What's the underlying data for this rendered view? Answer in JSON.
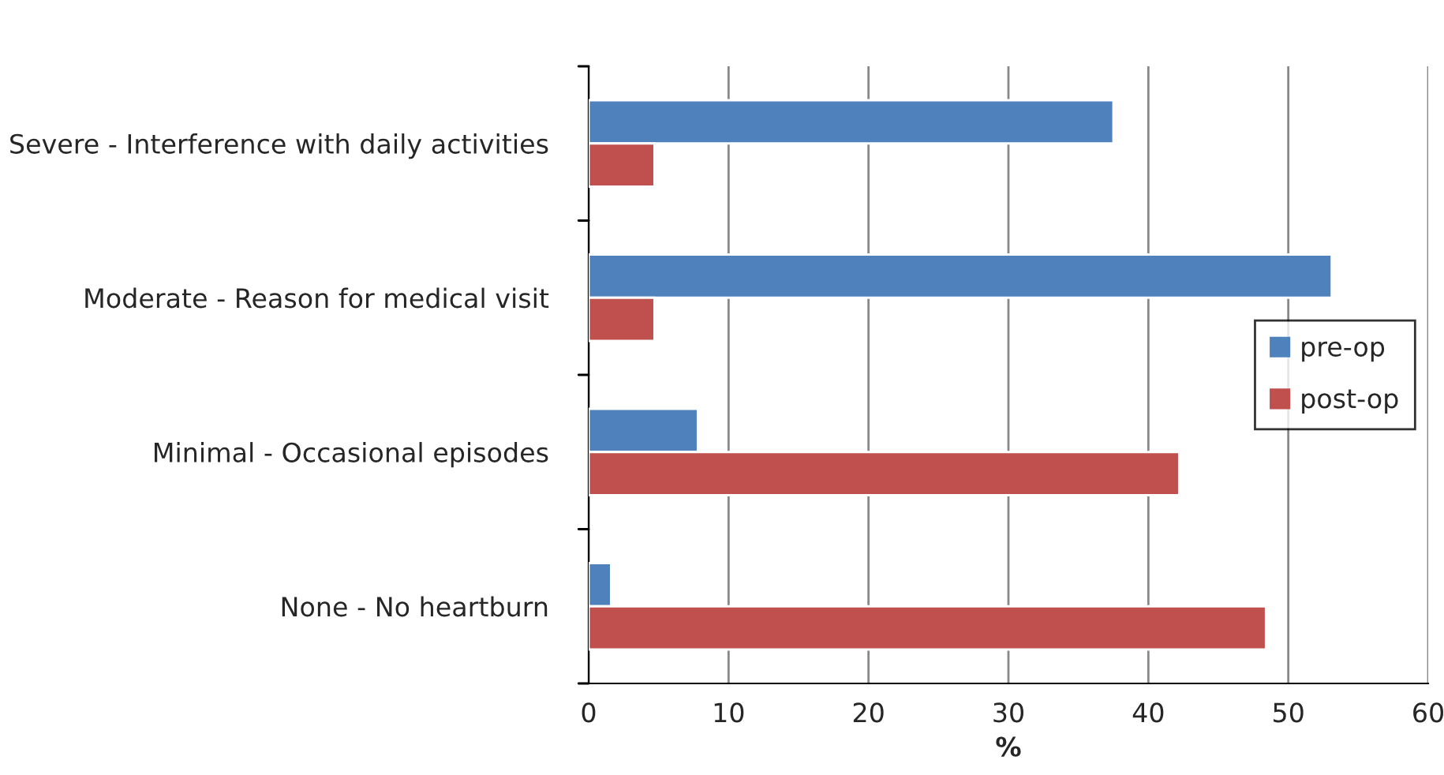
{
  "chart_data": {
    "type": "bar",
    "orientation": "horizontal",
    "xlabel": "%",
    "categories": [
      "Severe - Interference with daily activities",
      "Moderate - Reason for medical visit",
      "Minimal - Occasional episodes",
      "None - No heartburn"
    ],
    "series": [
      {
        "name": "pre-op",
        "color": "#4f81bd",
        "values": [
          37.5,
          53.1,
          7.8,
          1.6
        ]
      },
      {
        "name": "post-op",
        "color": "#c0504d",
        "values": [
          4.7,
          4.7,
          42.2,
          48.4
        ]
      }
    ],
    "xlim": [
      0,
      60
    ],
    "xticks": [
      0,
      10,
      20,
      30,
      40,
      50,
      60
    ],
    "grid": "x",
    "legend": "right"
  }
}
